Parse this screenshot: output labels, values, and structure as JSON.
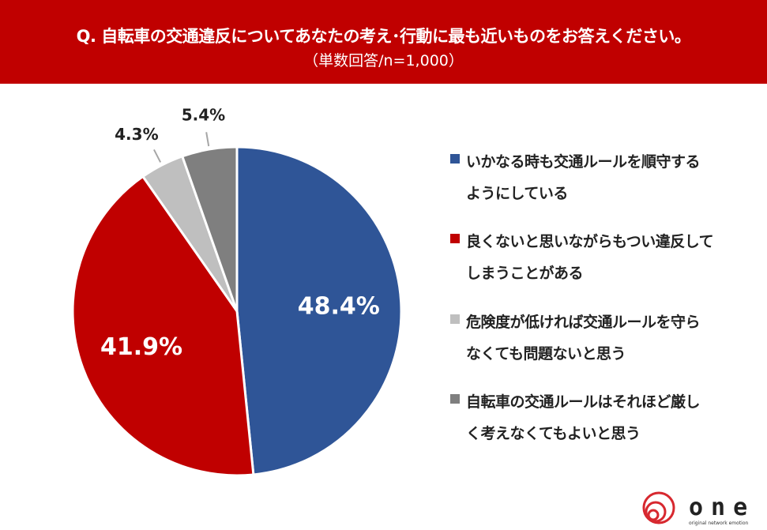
{
  "header": {
    "title": "Q. 自転車の交通違反についてあなたの考え･行動に最も近いものをお答えください。",
    "subtitle": "（単数回答/n=1,000）"
  },
  "chart_data": {
    "type": "pie",
    "start": "top",
    "direction": "clockwise",
    "legend_position": "right",
    "slices": [
      {
        "label": "いかなる時も交通ルールを順守するようにしている",
        "lines": [
          "いかなる時も交通ルールを順守する",
          "ようにしている"
        ],
        "value": 48.4,
        "display": "48.4%",
        "color": "#2f5597"
      },
      {
        "label": "良くないと思いながらもつい違反してしまうことがある",
        "lines": [
          "良くないと思いながらもつい違反して",
          "しまうことがある"
        ],
        "value": 41.9,
        "display": "41.9%",
        "color": "#c00000"
      },
      {
        "label": "危険度が低ければ交通ルールを守らなくても問題ないと思う",
        "lines": [
          "危険度が低ければ交通ルールを守ら",
          "なくても問題ないと思う"
        ],
        "value": 4.3,
        "display": "4.3%",
        "color": "#bfbfbf"
      },
      {
        "label": "自転車の交通ルールはそれほど厳しく考えなくてもよいと思う",
        "lines": [
          "自転車の交通ルールはそれほど厳し",
          "く考えなくてもよいと思う"
        ],
        "value": 5.4,
        "display": "5.4%",
        "color": "#7f7f7f"
      }
    ]
  },
  "logo": {
    "text": "one",
    "tagline": "original network emotion",
    "color": "#d7282f"
  }
}
